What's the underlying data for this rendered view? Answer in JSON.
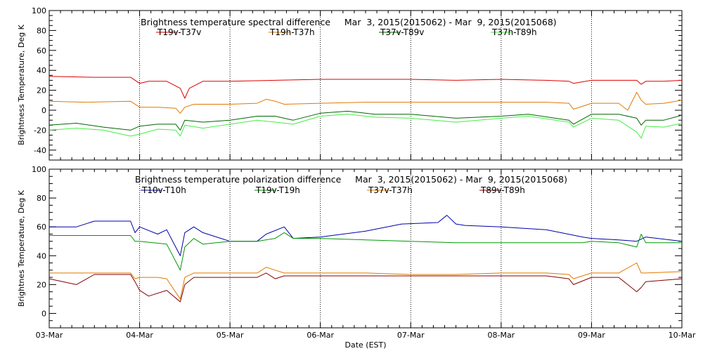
{
  "chart_data": [
    {
      "type": "line",
      "title": "Brightness temperature spectral difference     Mar  3, 2015(2015062) - Mar  9, 2015(2015068)",
      "ylabel": "Brightness Temperature, Deg K",
      "xlabel": "",
      "ylim": [
        -50,
        100
      ],
      "yticks": [
        -40,
        -20,
        0,
        20,
        40,
        60,
        80,
        100
      ],
      "xlim": [
        0,
        7
      ],
      "x_dates": [
        "03-Mar",
        "04-Mar",
        "05-Mar",
        "06-Mar",
        "07-Mar",
        "08-Mar",
        "09-Mar",
        "10-Mar"
      ],
      "x_tick_labels": [
        "",
        "",
        "",
        "",
        "",
        "",
        "",
        ""
      ],
      "grid": "vertical-dotted-at-day-boundaries",
      "legend_placement": "top",
      "series": [
        {
          "name": "T19v-T37v",
          "color": "#dd0000",
          "x": [
            0,
            0.5,
            0.9,
            1.0,
            1.1,
            1.3,
            1.45,
            1.5,
            1.55,
            1.7,
            2.0,
            2.5,
            3.0,
            3.5,
            4.0,
            4.5,
            5.0,
            5.5,
            5.75,
            5.8,
            6.0,
            6.5,
            6.55,
            6.6,
            6.8,
            7.0
          ],
          "y": [
            34,
            33,
            33,
            27,
            29,
            29,
            22,
            12,
            22,
            29,
            29,
            30,
            31,
            31,
            31,
            30,
            31,
            30,
            29,
            27,
            30,
            30,
            26,
            29,
            29,
            30
          ]
        },
        {
          "name": "T19h-T37h",
          "color": "#e07a00",
          "x": [
            0,
            0.4,
            0.9,
            1.0,
            1.2,
            1.4,
            1.45,
            1.5,
            1.6,
            1.8,
            2.0,
            2.3,
            2.4,
            2.5,
            2.6,
            3.0,
            3.5,
            4.0,
            4.5,
            5.0,
            5.5,
            5.75,
            5.8,
            6.0,
            6.3,
            6.4,
            6.5,
            6.55,
            6.6,
            6.8,
            7.0
          ],
          "y": [
            9,
            8,
            9,
            3,
            3,
            2,
            -3,
            3,
            6,
            6,
            6,
            7,
            11,
            9,
            6,
            7,
            8,
            8,
            8,
            8,
            8,
            7,
            1,
            7,
            7,
            0,
            18,
            10,
            6,
            7,
            10
          ]
        },
        {
          "name": "T37v-T89v",
          "color": "#006600",
          "x": [
            0,
            0.3,
            0.6,
            0.9,
            1.0,
            1.2,
            1.4,
            1.45,
            1.5,
            1.7,
            2.0,
            2.3,
            2.5,
            2.7,
            3.0,
            3.3,
            3.6,
            4.0,
            4.5,
            5.0,
            5.3,
            5.75,
            5.8,
            6.0,
            6.3,
            6.5,
            6.55,
            6.6,
            6.8,
            7.0
          ],
          "y": [
            -15,
            -13,
            -17,
            -20,
            -16,
            -14,
            -14,
            -20,
            -10,
            -12,
            -10,
            -6,
            -6,
            -10,
            -3,
            -1,
            -4,
            -4,
            -8,
            -6,
            -4,
            -10,
            -14,
            -4,
            -4,
            -8,
            -15,
            -10,
            -10,
            -5
          ]
        },
        {
          "name": "T37h-T89h",
          "color": "#44ee44",
          "x": [
            0,
            0.3,
            0.6,
            0.9,
            1.0,
            1.2,
            1.4,
            1.45,
            1.5,
            1.7,
            2.0,
            2.3,
            2.5,
            2.7,
            3.0,
            3.3,
            3.6,
            4.0,
            4.5,
            5.0,
            5.3,
            5.75,
            5.8,
            6.0,
            6.3,
            6.5,
            6.55,
            6.6,
            6.8,
            7.0
          ],
          "y": [
            -20,
            -18,
            -20,
            -26,
            -24,
            -19,
            -20,
            -26,
            -15,
            -18,
            -14,
            -10,
            -12,
            -14,
            -6,
            -4,
            -7,
            -8,
            -12,
            -8,
            -6,
            -12,
            -17,
            -8,
            -10,
            -22,
            -28,
            -16,
            -17,
            -13
          ]
        }
      ]
    },
    {
      "type": "line",
      "title": "Brightness temperature polarization difference     Mar  3, 2015(2015062) - Mar  9, 2015(2015068)",
      "ylabel": "Brightnes Temperature, Deg K",
      "xlabel": "Date (EST)",
      "ylim": [
        -10,
        100
      ],
      "yticks": [
        0,
        20,
        40,
        60,
        80,
        100
      ],
      "xlim": [
        0,
        7
      ],
      "x_dates": [
        "03-Mar",
        "04-Mar",
        "05-Mar",
        "06-Mar",
        "07-Mar",
        "08-Mar",
        "09-Mar",
        "10-Mar"
      ],
      "x_tick_labels": [
        "03-Mar",
        "04-Mar",
        "05-Mar",
        "06-Mar",
        "07-Mar",
        "08-Mar",
        "09-Mar",
        "10-Mar"
      ],
      "grid": "vertical-dotted-at-day-boundaries",
      "legend_placement": "top",
      "series": [
        {
          "name": "T10v-T10h",
          "color": "#0000aa",
          "x": [
            0,
            0.3,
            0.5,
            0.9,
            0.95,
            1.0,
            1.2,
            1.3,
            1.45,
            1.5,
            1.6,
            1.7,
            1.9,
            2.0,
            2.3,
            2.4,
            2.6,
            2.7,
            3.0,
            3.5,
            3.9,
            4.3,
            4.4,
            4.5,
            4.6,
            5.0,
            5.5,
            5.9,
            6.0,
            6.3,
            6.5,
            6.6,
            7.0
          ],
          "y": [
            60,
            60,
            64,
            64,
            56,
            60,
            55,
            58,
            40,
            56,
            60,
            56,
            52,
            50,
            50,
            55,
            60,
            52,
            53,
            57,
            62,
            63,
            68,
            62,
            61,
            60,
            58,
            53,
            52,
            51,
            50,
            53,
            50
          ]
        },
        {
          "name": "T19v-T19h",
          "color": "#009900",
          "x": [
            0,
            0.9,
            0.95,
            1.0,
            1.3,
            1.45,
            1.5,
            1.6,
            1.7,
            2.0,
            2.3,
            2.5,
            2.6,
            2.7,
            3.0,
            3.5,
            4.0,
            4.5,
            5.0,
            5.5,
            5.9,
            6.0,
            6.3,
            6.5,
            6.55,
            6.6,
            7.0
          ],
          "y": [
            54,
            54,
            50,
            50,
            48,
            30,
            46,
            52,
            48,
            50,
            50,
            52,
            56,
            52,
            52,
            51,
            50,
            49,
            49,
            49,
            49,
            50,
            49,
            46,
            55,
            49,
            49
          ]
        },
        {
          "name": "T37v-T37h",
          "color": "#e07a00",
          "x": [
            0,
            0.9,
            0.95,
            1.0,
            1.2,
            1.3,
            1.45,
            1.5,
            1.6,
            1.7,
            2.0,
            2.3,
            2.4,
            2.5,
            2.6,
            3.0,
            3.5,
            4.0,
            4.5,
            5.0,
            5.5,
            5.75,
            5.8,
            6.0,
            6.3,
            6.5,
            6.55,
            6.6,
            7.0
          ],
          "y": [
            28,
            28,
            24,
            25,
            25,
            24,
            10,
            25,
            28,
            28,
            28,
            28,
            32,
            30,
            28,
            28,
            28,
            27,
            27,
            28,
            28,
            27,
            24,
            28,
            28,
            35,
            28,
            28,
            29
          ]
        },
        {
          "name": "T89v-T89h",
          "color": "#880000",
          "x": [
            0,
            0.3,
            0.5,
            0.9,
            0.95,
            1.0,
            1.1,
            1.3,
            1.45,
            1.5,
            1.6,
            1.7,
            2.0,
            2.3,
            2.4,
            2.5,
            2.6,
            3.0,
            3.5,
            4.0,
            4.5,
            5.0,
            5.5,
            5.75,
            5.8,
            6.0,
            6.3,
            6.5,
            6.55,
            6.6,
            7.0
          ],
          "y": [
            24,
            20,
            27,
            27,
            22,
            16,
            12,
            16,
            8,
            20,
            25,
            25,
            25,
            25,
            28,
            24,
            26,
            26,
            26,
            26,
            26,
            26,
            26,
            24,
            20,
            25,
            25,
            15,
            18,
            22,
            24
          ]
        }
      ]
    }
  ]
}
